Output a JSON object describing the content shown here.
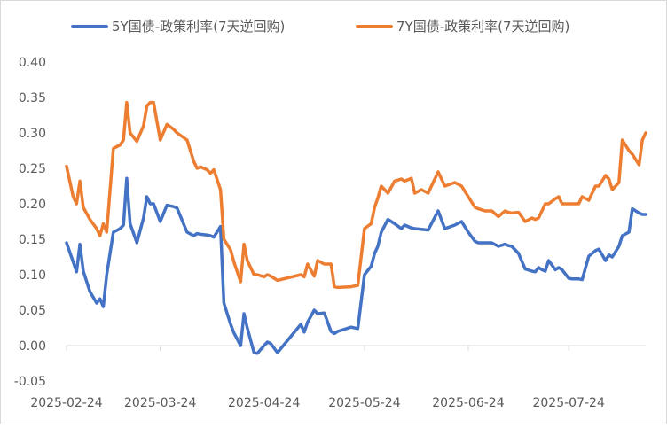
{
  "chart_data": {
    "type": "line",
    "title": "",
    "xlabel": "",
    "ylabel": "",
    "ylim": [
      -0.05,
      0.4
    ],
    "yticks": [
      -0.05,
      0.0,
      0.05,
      0.1,
      0.15,
      0.2,
      0.25,
      0.3,
      0.35,
      0.4
    ],
    "ytick_labels": [
      "-0.05",
      "0.00",
      "0.05",
      "0.10",
      "0.15",
      "0.20",
      "0.25",
      "0.30",
      "0.35",
      "0.40"
    ],
    "xlim": [
      "2025-02-24",
      "2025-08-16"
    ],
    "xtick_labels": [
      "2025-02-24",
      "2025-03-24",
      "2025-04-24",
      "2025-05-24",
      "2025-06-24",
      "2025-07-24"
    ],
    "grid": false,
    "legend_position": "top",
    "series": [
      {
        "name": "5Y国债-政策利率(7天逆回购)",
        "color": "#4472C4",
        "x": [
          "2025-02-24",
          "2025-02-26",
          "2025-02-27",
          "2025-02-28",
          "2025-03-01",
          "2025-03-03",
          "2025-03-05",
          "2025-03-06",
          "2025-03-07",
          "2025-03-08",
          "2025-03-10",
          "2025-03-12",
          "2025-03-13",
          "2025-03-14",
          "2025-03-15",
          "2025-03-17",
          "2025-03-19",
          "2025-03-20",
          "2025-03-21",
          "2025-03-22",
          "2025-03-24",
          "2025-03-26",
          "2025-03-28",
          "2025-03-29",
          "2025-04-01",
          "2025-04-03",
          "2025-04-04",
          "2025-04-05",
          "2025-04-07",
          "2025-04-08",
          "2025-04-09",
          "2025-04-11",
          "2025-04-12",
          "2025-04-14",
          "2025-04-15",
          "2025-04-17",
          "2025-04-18",
          "2025-04-19",
          "2025-04-21",
          "2025-04-22",
          "2025-04-24",
          "2025-04-25",
          "2025-04-26",
          "2025-04-28",
          "2025-05-05",
          "2025-05-06",
          "2025-05-07",
          "2025-05-09",
          "2025-05-10",
          "2025-05-12",
          "2025-05-14",
          "2025-05-15",
          "2025-05-16",
          "2025-05-20",
          "2025-05-22",
          "2025-05-24",
          "2025-05-26",
          "2025-05-27",
          "2025-05-28",
          "2025-05-29",
          "2025-05-31",
          "2025-06-02",
          "2025-06-04",
          "2025-06-05",
          "2025-06-07",
          "2025-06-08",
          "2025-06-10",
          "2025-06-12",
          "2025-06-13",
          "2025-06-15",
          "2025-06-17",
          "2025-06-20",
          "2025-06-22",
          "2025-06-24",
          "2025-06-26",
          "2025-06-27",
          "2025-06-29",
          "2025-07-01",
          "2025-07-03",
          "2025-07-05",
          "2025-07-06",
          "2025-07-07",
          "2025-07-09",
          "2025-07-11",
          "2025-07-13",
          "2025-07-14",
          "2025-07-15",
          "2025-07-16",
          "2025-07-17",
          "2025-07-18",
          "2025-07-20",
          "2025-07-21",
          "2025-07-22",
          "2025-07-24",
          "2025-07-25",
          "2025-07-27",
          "2025-07-28",
          "2025-07-30",
          "2025-08-01",
          "2025-08-02",
          "2025-08-04",
          "2025-08-05",
          "2025-08-06",
          "2025-08-08",
          "2025-08-09",
          "2025-08-11",
          "2025-08-12",
          "2025-08-14",
          "2025-08-15",
          "2025-08-16"
        ],
        "values": [
          0.145,
          0.118,
          0.104,
          0.143,
          0.105,
          0.076,
          0.06,
          0.066,
          0.055,
          0.1,
          0.16,
          0.165,
          0.17,
          0.236,
          0.172,
          0.145,
          0.18,
          0.21,
          0.2,
          0.2,
          0.175,
          0.198,
          0.196,
          0.194,
          0.16,
          0.155,
          0.158,
          0.157,
          0.156,
          0.155,
          0.153,
          0.168,
          0.06,
          0.03,
          0.018,
          0.0,
          0.045,
          0.025,
          -0.01,
          -0.011,
          0.0,
          0.005,
          0.003,
          -0.01,
          0.03,
          0.019,
          0.033,
          0.05,
          0.045,
          0.046,
          0.02,
          0.017,
          0.02,
          0.026,
          0.024,
          0.1,
          0.112,
          0.13,
          0.14,
          0.16,
          0.178,
          0.172,
          0.165,
          0.17,
          0.166,
          0.165,
          0.164,
          0.163,
          0.172,
          0.19,
          0.165,
          0.17,
          0.175,
          0.16,
          0.147,
          0.145,
          0.145,
          0.145,
          0.14,
          0.143,
          0.141,
          0.14,
          0.13,
          0.108,
          0.105,
          0.104,
          0.11,
          0.107,
          0.105,
          0.12,
          0.107,
          0.11,
          0.107,
          0.095,
          0.094,
          0.094,
          0.093,
          0.126,
          0.134,
          0.136,
          0.12,
          0.128,
          0.125,
          0.14,
          0.155,
          0.16,
          0.193,
          0.187,
          0.185,
          0.185
        ],
        "x_note": ""
      },
      {
        "name": "7Y国债-政策利率(7天逆回购)",
        "color": "#ED7D31",
        "values": [
          0.253,
          0.21,
          0.2,
          0.232,
          0.195,
          0.178,
          0.165,
          0.155,
          0.172,
          0.16,
          0.278,
          0.283,
          0.29,
          0.343,
          0.3,
          0.288,
          0.31,
          0.338,
          0.343,
          0.343,
          0.29,
          0.312,
          0.305,
          0.3,
          0.29,
          0.26,
          0.25,
          0.252,
          0.248,
          0.243,
          0.248,
          0.22,
          0.15,
          0.135,
          0.118,
          0.09,
          0.143,
          0.12,
          0.1,
          0.1,
          0.097,
          0.1,
          0.098,
          0.092,
          0.1,
          0.097,
          0.115,
          0.098,
          0.12,
          0.115,
          0.115,
          0.083,
          0.082,
          0.083,
          0.085,
          0.165,
          0.172,
          0.195,
          0.208,
          0.225,
          0.215,
          0.232,
          0.235,
          0.232,
          0.236,
          0.215,
          0.22,
          0.215,
          0.225,
          0.245,
          0.225,
          0.23,
          0.225,
          0.21,
          0.195,
          0.193,
          0.19,
          0.19,
          0.182,
          0.19,
          0.188,
          0.187,
          0.188,
          0.175,
          0.18,
          0.178,
          0.18,
          0.19,
          0.2,
          0.2,
          0.207,
          0.21,
          0.2,
          0.2,
          0.2,
          0.2,
          0.21,
          0.205,
          0.225,
          0.225,
          0.24,
          0.235,
          0.22,
          0.23,
          0.29,
          0.275,
          0.27,
          0.255,
          0.29,
          0.3
        ]
      }
    ]
  }
}
